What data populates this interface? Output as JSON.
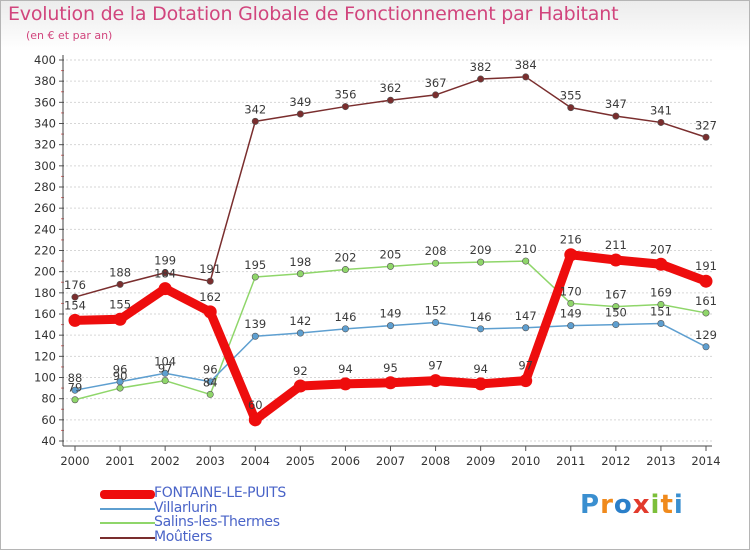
{
  "title": "Evolution de la Dotation Globale de Fonctionnement par Habitant",
  "subtitle": "(en € et par an)",
  "logo": {
    "text": "Proxiti",
    "colors": [
      "#3a8fd0",
      "#f08a1c",
      "#2b7fc9",
      "#e23a2c",
      "#7cbf3a",
      "#f08a1c",
      "#3a8fd0"
    ]
  },
  "chart_data": {
    "type": "line",
    "title": "Evolution de la Dotation Globale de Fonctionnement par Habitant",
    "subtitle": "(en € et par an)",
    "xlabel": "",
    "ylabel": "",
    "ylim": [
      40,
      400
    ],
    "ystep": 20,
    "categories": [
      "2000",
      "2001",
      "2002",
      "2003",
      "2004",
      "2005",
      "2006",
      "2007",
      "2008",
      "2009",
      "2010",
      "2011",
      "2012",
      "2013",
      "2014"
    ],
    "series": [
      {
        "name": "Moûtiers",
        "color": "#7a2e2e",
        "width": 1.5,
        "values": [
          176,
          188,
          199,
          191,
          342,
          349,
          356,
          362,
          367,
          382,
          384,
          355,
          347,
          341,
          327
        ]
      },
      {
        "name": "Salins-les-Thermes",
        "color": "#8fd66a",
        "width": 1.5,
        "values": [
          79,
          90,
          97,
          84,
          195,
          198,
          202,
          205,
          208,
          209,
          210,
          170,
          167,
          169,
          161
        ]
      },
      {
        "name": "Villarlurin",
        "color": "#5e9fd0",
        "width": 1.5,
        "values": [
          88,
          96,
          104,
          96,
          139,
          142,
          146,
          149,
          152,
          146,
          147,
          149,
          150,
          151,
          129
        ]
      },
      {
        "name": "FONTAINE-LE-PUITS",
        "color": "#ee0d0d",
        "width": 9,
        "values": [
          154,
          155,
          184,
          162,
          60,
          92,
          94,
          95,
          97,
          94,
          97,
          216,
          211,
          207,
          191
        ]
      }
    ],
    "legend": {
      "position": "bottom-left",
      "order": [
        "FONTAINE-LE-PUITS",
        "Villarlurin",
        "Salins-les-Thermes",
        "Moûtiers"
      ]
    }
  }
}
